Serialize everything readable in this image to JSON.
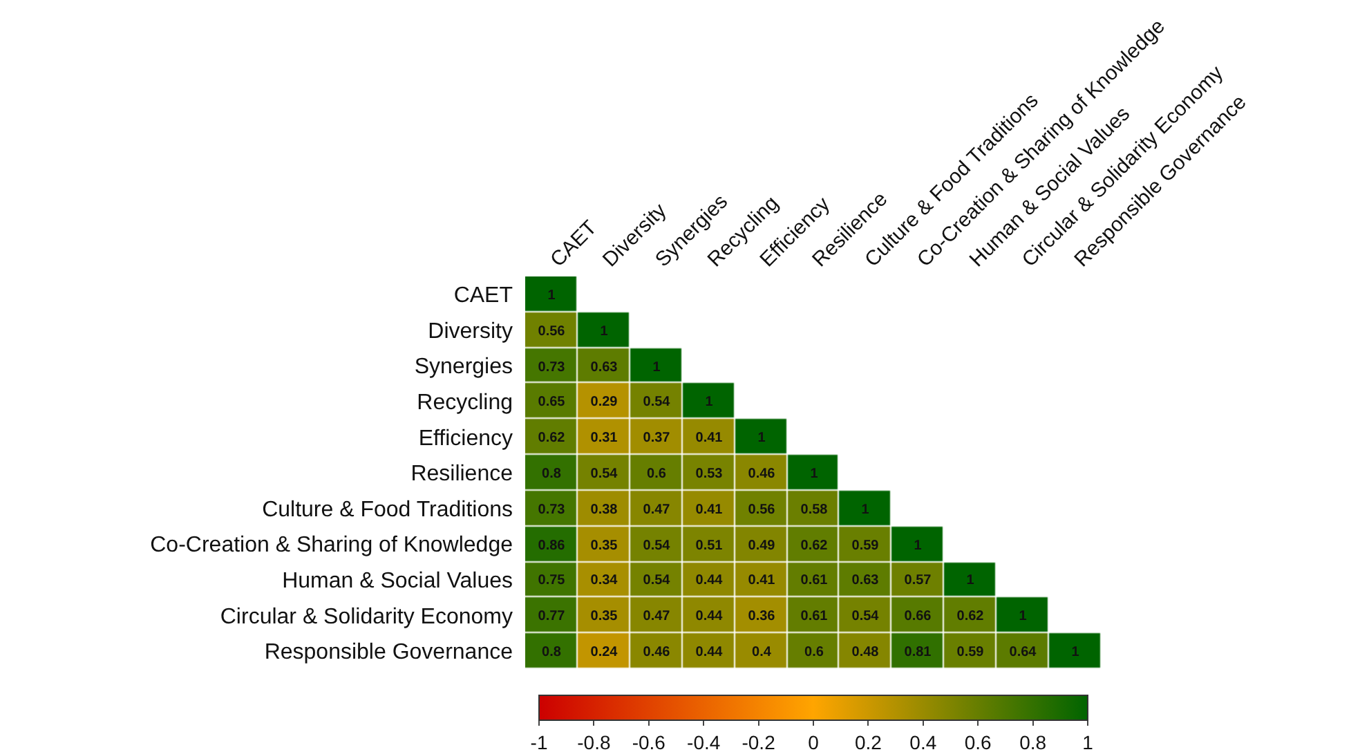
{
  "chart_data": {
    "type": "heatmap",
    "categories": [
      "CAET",
      "Diversity",
      "Synergies",
      "Recycling",
      "Efficiency",
      "Resilience",
      "Culture & Food Traditions",
      "Co-Creation & Sharing of Knowledge",
      "Human & Social Values",
      "Circular & Solidarity Economy",
      "Responsible Governance"
    ],
    "y_categories": [
      "CAET",
      "Diversity",
      "Synergies",
      "Recycling",
      "Efficiency",
      "Resilience",
      "Culture & Food Traditions",
      "Co-Creation & Sharing of Knowledge",
      "Human & Social Values",
      "Circular & Solidarity Economy",
      "Responsible Governance"
    ],
    "cells": [
      [
        1,
        null,
        null,
        null,
        null,
        null,
        null,
        null,
        null,
        null,
        null
      ],
      [
        0.56,
        1,
        null,
        null,
        null,
        null,
        null,
        null,
        null,
        null,
        null
      ],
      [
        0.73,
        0.63,
        1,
        null,
        null,
        null,
        null,
        null,
        null,
        null,
        null
      ],
      [
        0.65,
        0.29,
        0.54,
        1,
        null,
        null,
        null,
        null,
        null,
        null,
        null
      ],
      [
        0.62,
        0.31,
        0.37,
        0.41,
        1,
        null,
        null,
        null,
        null,
        null,
        null
      ],
      [
        0.8,
        0.54,
        0.6,
        0.53,
        0.46,
        1,
        null,
        null,
        null,
        null,
        null
      ],
      [
        0.73,
        0.38,
        0.47,
        0.41,
        0.56,
        0.58,
        1,
        null,
        null,
        null,
        null
      ],
      [
        0.86,
        0.35,
        0.54,
        0.51,
        0.49,
        0.62,
        0.59,
        1,
        null,
        null,
        null
      ],
      [
        0.75,
        0.34,
        0.54,
        0.44,
        0.41,
        0.61,
        0.63,
        0.57,
        1,
        null,
        null
      ],
      [
        0.77,
        0.35,
        0.47,
        0.44,
        0.36,
        0.61,
        0.54,
        0.66,
        0.62,
        1,
        null
      ],
      [
        0.8,
        0.24,
        0.46,
        0.44,
        0.4,
        0.6,
        0.48,
        0.81,
        0.59,
        0.64,
        1
      ]
    ],
    "data_labels": true,
    "clim": [
      -1,
      1
    ],
    "cticks": [
      -1,
      -0.8,
      -0.6,
      -0.4,
      -0.2,
      0,
      0.2,
      0.4,
      0.6,
      0.8,
      1
    ]
  }
}
